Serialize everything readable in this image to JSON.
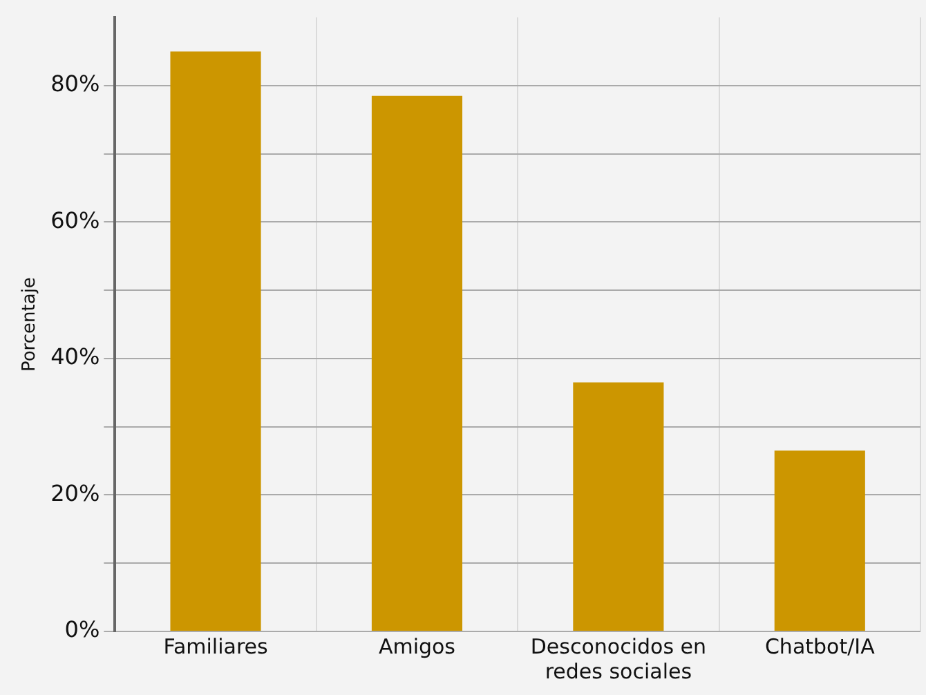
{
  "chart_data": {
    "type": "bar",
    "ylabel": "Porcentaje",
    "categories": [
      "Familiares",
      "Amigos",
      "Desconocidos en redes sociales",
      "Chatbot/IA"
    ],
    "values": [
      85,
      78.5,
      36.5,
      26.5
    ],
    "color": "#cc9600",
    "ylim": [
      0,
      90
    ],
    "yticks": [
      {
        "value": 0,
        "label": "0%"
      },
      {
        "value": 10,
        "label": null
      },
      {
        "value": 20,
        "label": "20%"
      },
      {
        "value": 30,
        "label": null
      },
      {
        "value": 40,
        "label": "40%"
      },
      {
        "value": 50,
        "label": null
      },
      {
        "value": 60,
        "label": "60%"
      },
      {
        "value": 70,
        "label": null
      },
      {
        "value": 80,
        "label": "80%"
      }
    ],
    "grid": true,
    "legend": false
  }
}
